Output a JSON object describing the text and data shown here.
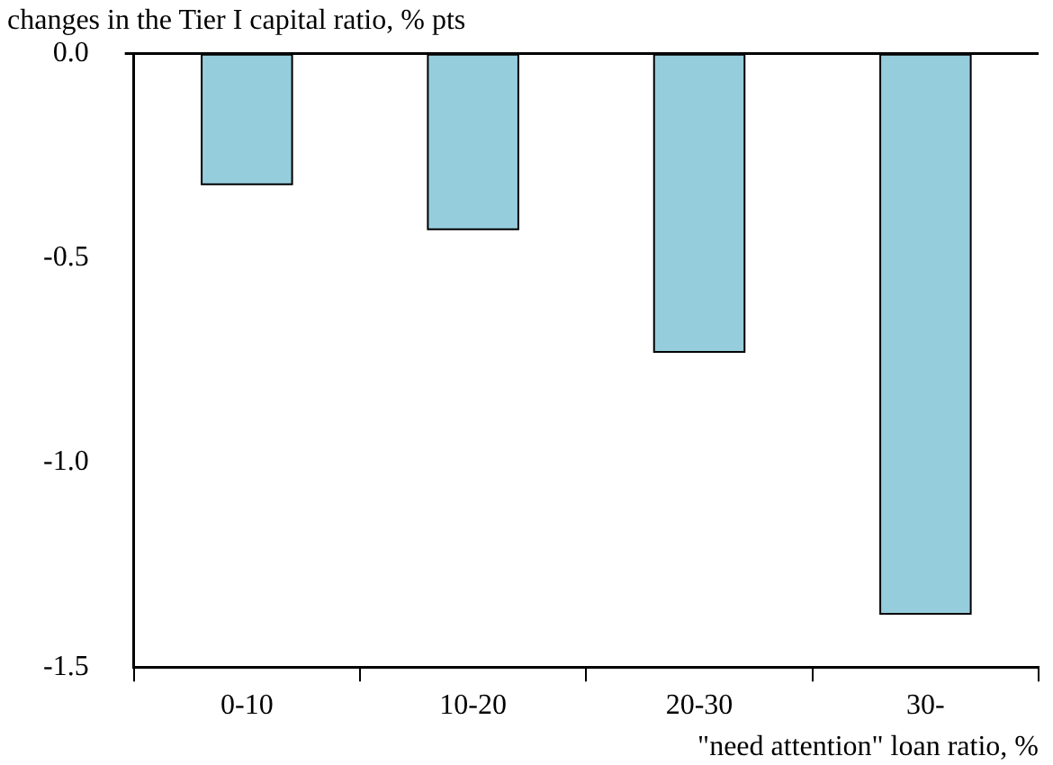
{
  "chart_data": {
    "type": "bar",
    "title": "changes in the Tier I capital ratio, % pts",
    "xlabel": "\"need attention\" loan ratio, %",
    "categories": [
      "0-10",
      "10-20",
      "20-30",
      "30-"
    ],
    "values": [
      -0.32,
      -0.43,
      -0.73,
      -1.37
    ],
    "color": "#96cddd",
    "ylim": [
      -1.5,
      0
    ],
    "yticks": [
      {
        "value": 0,
        "label": "0.0"
      },
      {
        "value": -0.5,
        "label": "-0.5"
      },
      {
        "value": -1,
        "label": "-1.0"
      },
      {
        "value": -1.5,
        "label": "-1.5"
      }
    ],
    "legend": false
  }
}
